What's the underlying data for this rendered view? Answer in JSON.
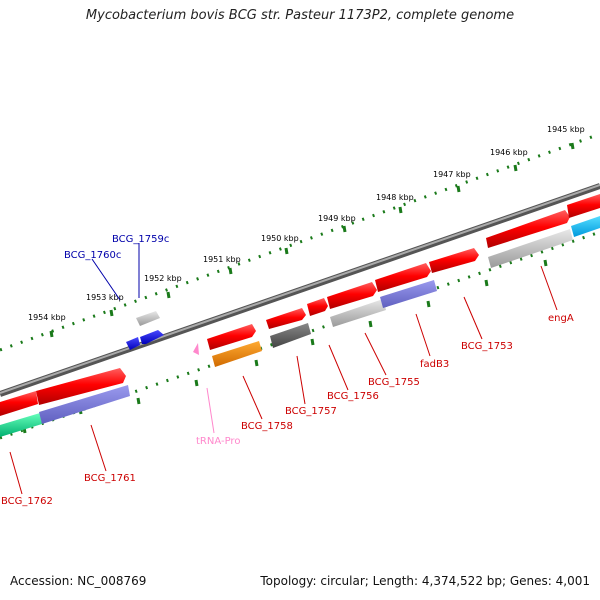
{
  "title": "Mycobacterium bovis BCG str. Pasteur 1173P2, complete genome",
  "footer": {
    "accession": "Accession: NC_008769",
    "summary": "Topology: circular; Length: 4,374,522 bp; Genes: 4,001"
  },
  "ticks": [
    "1954 kbp",
    "1953 kbp",
    "1952 kbp",
    "1951 kbp",
    "1950 kbp",
    "1949 kbp",
    "1948 kbp",
    "1947 kbp",
    "1946 kbp",
    "1945 kbp"
  ],
  "genes": {
    "BCG_1760c": "BCG_1760c",
    "BCG_1759c": "BCG_1759c",
    "BCG_1762": "BCG_1762",
    "BCG_1761": "BCG_1761",
    "tRNA_Pro": "tRNA-Pro",
    "BCG_1758": "BCG_1758",
    "BCG_1757": "BCG_1757",
    "BCG_1756": "BCG_1756",
    "BCG_1755": "BCG_1755",
    "fadB3": "fadB3",
    "BCG_1753": "BCG_1753",
    "engA": "engA"
  },
  "colors": {
    "cds": "#ee0000",
    "cds_minus_label": "#0000aa",
    "cds_plus_label": "#cc0000",
    "trna": "#ff88cc",
    "tick": "#1a7a1a",
    "backbone": "#777777",
    "minus_strand": "#0000ee"
  }
}
